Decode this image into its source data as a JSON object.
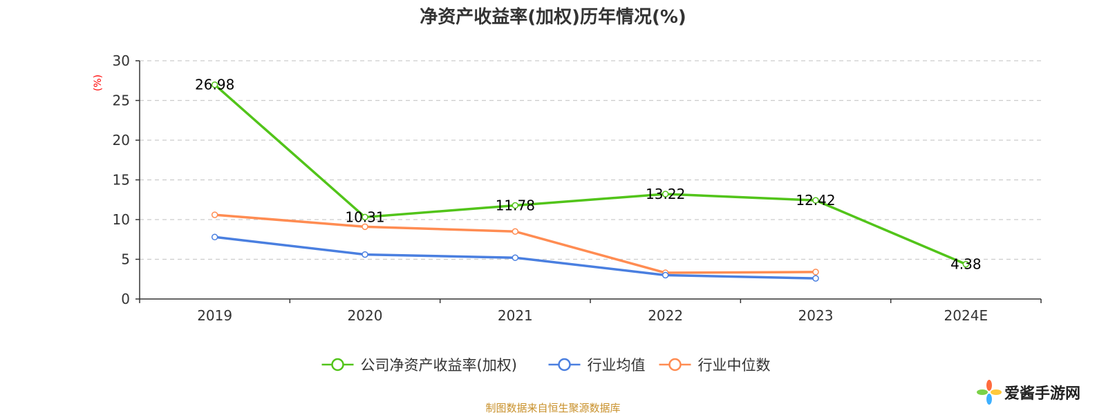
{
  "chart_data": {
    "type": "line",
    "title": "净资产收益率(加权)历年情况(%)",
    "ylabel": "(%)",
    "xlabel": "",
    "categories": [
      "2019",
      "2020",
      "2021",
      "2022",
      "2023",
      "2024E"
    ],
    "ylim": [
      0,
      30
    ],
    "yticks": [
      0,
      5,
      10,
      15,
      20,
      25,
      30
    ],
    "grid": true,
    "legend_position": "bottom",
    "series": [
      {
        "name": "公司净资产收益率(加权)",
        "color": "#52c41a",
        "values": [
          26.98,
          10.31,
          11.78,
          13.22,
          12.42,
          4.38
        ],
        "labels": [
          "26.98",
          "10.31",
          "11.78",
          "13.22",
          "12.42",
          "4.38"
        ]
      },
      {
        "name": "行业均值",
        "color": "#4a7fe0",
        "values": [
          7.8,
          5.6,
          5.2,
          3.0,
          2.6,
          null
        ]
      },
      {
        "name": "行业中位数",
        "color": "#ff8c52",
        "values": [
          10.6,
          9.1,
          8.5,
          3.3,
          3.4,
          null
        ]
      }
    ]
  },
  "footer": {
    "source": "制图数据来自恒生聚源数据库",
    "logo_text": "爱酱手游网"
  }
}
